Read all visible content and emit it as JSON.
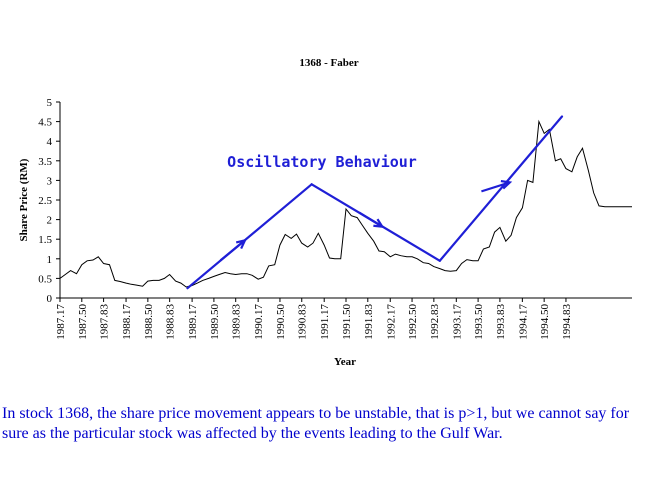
{
  "chart_data": {
    "type": "line",
    "title": "1368 - Faber",
    "xlabel": "Year",
    "ylabel": "Share Price (RM)",
    "ylim": [
      0,
      5
    ],
    "yticks": [
      0,
      0.5,
      1,
      1.5,
      2,
      2.5,
      3,
      3.5,
      4,
      4.5,
      5
    ],
    "ytick_labels": [
      "0",
      "0.5",
      "1",
      "1.5",
      "2",
      "2.5",
      "3",
      "3.5",
      "4",
      "4.5",
      "5"
    ],
    "xlim": [
      1987.17,
      1995.83
    ],
    "xticks": [
      1987.17,
      1987.5,
      1987.83,
      1988.17,
      1988.5,
      1988.83,
      1989.17,
      1989.5,
      1989.83,
      1990.17,
      1990.5,
      1990.83,
      1991.17,
      1991.5,
      1991.83,
      1992.17,
      1992.5,
      1992.83,
      1993.17,
      1993.5,
      1993.83,
      1994.17,
      1994.5,
      1994.83
    ],
    "xtick_labels": [
      "1987.17",
      "1987.50",
      "1987.83",
      "1988.17",
      "1988.50",
      "1988.83",
      "1989.17",
      "1989.50",
      "1989.83",
      "1990.17",
      "1990.50",
      "1990.83",
      "1991.17",
      "1991.50",
      "1991.83",
      "1992.17",
      "1992.50",
      "1992.83",
      "1993.17",
      "1993.50",
      "1993.83",
      "1994.17",
      "1994.50",
      "1994.83"
    ],
    "grid": false,
    "series": [
      {
        "color": "#000000",
        "x": [
          1987.17,
          1987.25,
          1987.33,
          1987.42,
          1987.5,
          1987.58,
          1987.67,
          1987.75,
          1987.83,
          1987.92,
          1988.0,
          1988.08,
          1988.17,
          1988.25,
          1988.33,
          1988.42,
          1988.5,
          1988.58,
          1988.67,
          1988.75,
          1988.83,
          1988.92,
          1989.0,
          1989.08,
          1989.17,
          1989.25,
          1989.33,
          1989.42,
          1989.5,
          1989.58,
          1989.67,
          1989.75,
          1989.83,
          1989.92,
          1990.0,
          1990.08,
          1990.17,
          1990.25,
          1990.33,
          1990.42,
          1990.5,
          1990.58,
          1990.67,
          1990.75,
          1990.83,
          1990.92,
          1991.0,
          1991.08,
          1991.17,
          1991.25,
          1991.33,
          1991.42,
          1991.5,
          1991.58,
          1991.67,
          1991.75,
          1991.83,
          1991.92,
          1992.0,
          1992.08,
          1992.17,
          1992.25,
          1992.33,
          1992.42,
          1992.5,
          1992.58,
          1992.67,
          1992.75,
          1992.83,
          1992.92,
          1993.0,
          1993.08,
          1993.17,
          1993.25,
          1993.33,
          1993.42,
          1993.5,
          1993.58,
          1993.67,
          1993.75,
          1993.83,
          1993.92,
          1994.0,
          1994.08,
          1994.17,
          1994.25,
          1994.33,
          1994.42,
          1994.5,
          1994.58,
          1994.67,
          1994.75,
          1994.83,
          1994.92,
          1995.0,
          1995.08,
          1995.17,
          1995.25,
          1995.33,
          1995.42,
          1995.5,
          1995.58,
          1995.67,
          1995.75,
          1995.83
        ],
        "values": [
          0.5,
          0.6,
          0.7,
          0.62,
          0.85,
          0.95,
          0.97,
          1.05,
          0.88,
          0.85,
          0.45,
          0.42,
          0.38,
          0.35,
          0.33,
          0.3,
          0.43,
          0.45,
          0.45,
          0.5,
          0.6,
          0.43,
          0.38,
          0.28,
          0.32,
          0.38,
          0.45,
          0.5,
          0.55,
          0.6,
          0.65,
          0.62,
          0.6,
          0.62,
          0.62,
          0.58,
          0.48,
          0.53,
          0.82,
          0.85,
          1.35,
          1.62,
          1.52,
          1.63,
          1.4,
          1.3,
          1.4,
          1.65,
          1.35,
          1.02,
          1.0,
          1.0,
          2.27,
          2.1,
          2.05,
          1.85,
          1.65,
          1.45,
          1.2,
          1.18,
          1.05,
          1.12,
          1.08,
          1.05,
          1.05,
          1.0,
          0.9,
          0.88,
          0.8,
          0.75,
          0.7,
          0.68,
          0.7,
          0.88,
          0.98,
          0.95,
          0.95,
          1.25,
          1.3,
          1.68,
          1.8,
          1.45,
          1.6,
          2.05,
          2.3,
          3.0,
          2.95,
          4.5,
          4.2,
          4.3,
          3.5,
          3.55,
          3.3,
          3.22,
          3.6,
          3.82,
          3.25,
          2.68,
          2.35,
          2.33,
          2.33,
          2.33,
          2.33,
          2.33,
          2.33
        ]
      }
    ],
    "overlay": {
      "label": "Oscillatory Behaviour",
      "color": "#1f1fd6",
      "lines": [
        {
          "x1": 1989.1,
          "y1": 0.25,
          "x2": 1990.98,
          "y2": 2.9
        },
        {
          "x1": 1990.98,
          "y1": 2.9,
          "x2": 1992.92,
          "y2": 0.95
        },
        {
          "x1": 1992.92,
          "y1": 0.95,
          "x2": 1994.77,
          "y2": 4.63
        }
      ],
      "arrows": [
        {
          "x1": 1989.6,
          "y1": 0.96,
          "x2": 1989.97,
          "y2": 1.47
        },
        {
          "x1": 1991.7,
          "y1": 2.18,
          "x2": 1992.05,
          "y2": 1.82
        },
        {
          "x1": 1993.55,
          "y1": 2.72,
          "x2": 1993.98,
          "y2": 2.95
        }
      ]
    }
  },
  "caption": "In stock 1368, the share price movement appears to be unstable, that is p>1, but we cannot say for sure as the particular stock was affected by the events leading to the Gulf War."
}
